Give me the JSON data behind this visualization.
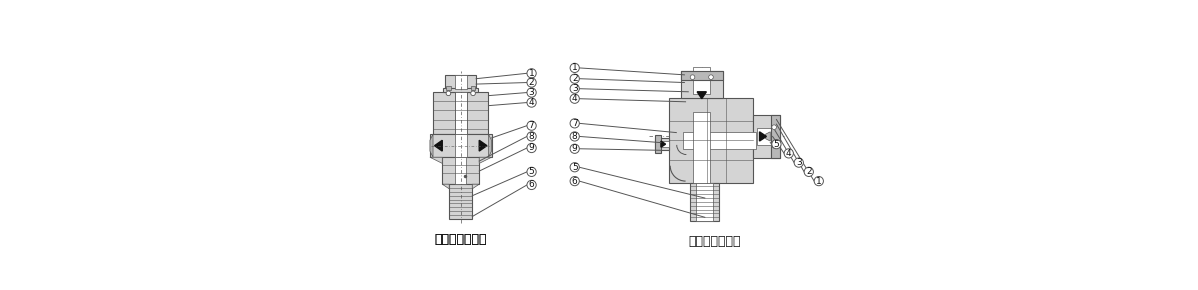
{
  "bg_color": "#ffffff",
  "line_color": "#555555",
  "gray_light": "#d4d4d4",
  "gray_med": "#b8b8b8",
  "gray_dark": "#999999",
  "black": "#111111",
  "white": "#ffffff",
  "label_left": "ハーフユニオン",
  "label_right": "エルボユニオン",
  "font_size_label": 9,
  "font_size_num": 6.5,
  "lw": 0.8
}
